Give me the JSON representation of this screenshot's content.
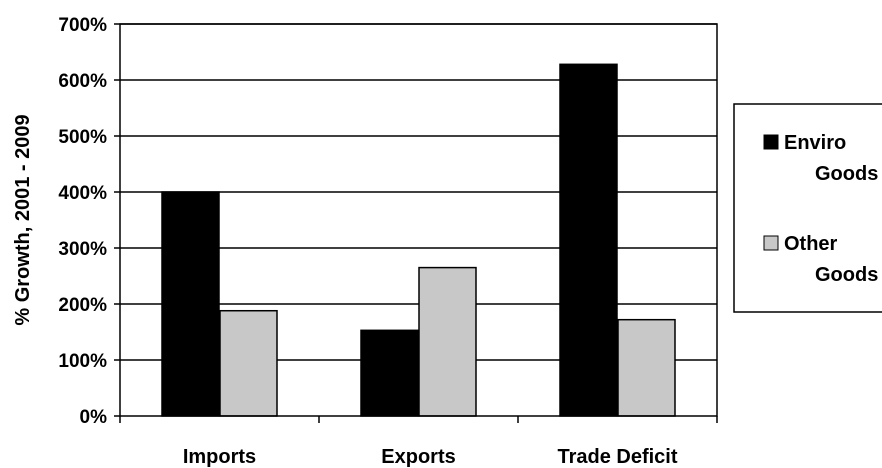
{
  "colors": {
    "enviro": "#000000",
    "other": "#c8c8c8",
    "grid": "#000000",
    "background": "#ffffff"
  },
  "chart_data": {
    "type": "bar",
    "title": "",
    "xlabel": "",
    "ylabel": "% Growth, 2001 - 2009",
    "categories": [
      "Imports",
      "Exports",
      "Trade Deficit"
    ],
    "series": [
      {
        "name": "Enviro Goods",
        "legend_lines": [
          "Enviro",
          "Goods"
        ],
        "color": "#000000",
        "values": [
          400,
          153,
          628
        ]
      },
      {
        "name": "Other Goods",
        "legend_lines": [
          "Other",
          "Goods"
        ],
        "color": "#c8c8c8",
        "values": [
          188,
          265,
          172
        ]
      }
    ],
    "ylim": [
      0,
      700
    ],
    "yticks": [
      0,
      100,
      200,
      300,
      400,
      500,
      600,
      700
    ],
    "ytick_labels": [
      "0%",
      "100%",
      "200%",
      "300%",
      "400%",
      "500%",
      "600%",
      "700%"
    ],
    "grid": true,
    "legend": "right"
  }
}
